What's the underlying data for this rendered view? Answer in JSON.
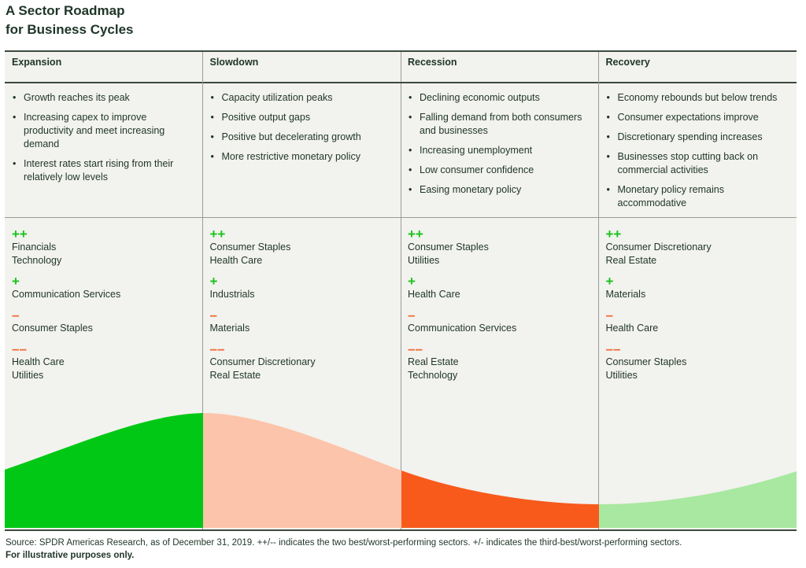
{
  "title_line1": "A Sector Roadmap",
  "title_line2": "for Business Cycles",
  "phases": [
    {
      "name": "Expansion",
      "bullets": [
        "Growth reaches its peak",
        "Increasing capex to improve productivity and meet increasing demand",
        "Interest rates start rising from their relatively low levels"
      ],
      "sectors": [
        {
          "mark": "++",
          "items": [
            "Financials",
            "Technology"
          ]
        },
        {
          "mark": "+",
          "items": [
            "Communication Services"
          ]
        },
        {
          "mark": "–",
          "items": [
            "Consumer Staples"
          ]
        },
        {
          "mark": "––",
          "items": [
            "Health Care",
            "Utilities"
          ]
        }
      ],
      "color": "#00c815"
    },
    {
      "name": "Slowdown",
      "bullets": [
        "Capacity utilization peaks",
        "Positive output gaps",
        "Positive but decelerating growth",
        "More restrictive monetary policy"
      ],
      "sectors": [
        {
          "mark": "++",
          "items": [
            "Consumer Staples",
            "Health Care"
          ]
        },
        {
          "mark": "+",
          "items": [
            "Industrials"
          ]
        },
        {
          "mark": "–",
          "items": [
            "Materials"
          ]
        },
        {
          "mark": "––",
          "items": [
            "Consumer Discretionary",
            "Real Estate"
          ]
        }
      ],
      "color": "#fcc4aa"
    },
    {
      "name": "Recession",
      "bullets": [
        "Declining economic outputs",
        "Falling demand from both consumers and businesses",
        "Increasing unemployment",
        "Low consumer confidence",
        "Easing monetary policy"
      ],
      "sectors": [
        {
          "mark": "++",
          "items": [
            "Consumer Staples",
            "Utilities"
          ]
        },
        {
          "mark": "+",
          "items": [
            "Health Care"
          ]
        },
        {
          "mark": "–",
          "items": [
            "Communication Services"
          ]
        },
        {
          "mark": "––",
          "items": [
            "Real Estate",
            "Technology"
          ]
        }
      ],
      "color": "#f85a1c"
    },
    {
      "name": "Recovery",
      "bullets": [
        "Economy rebounds but below trends",
        "Consumer expectations improve",
        "Discretionary spending increases",
        "Businesses stop cutting back on commercial activities",
        "Monetary policy remains accommodative"
      ],
      "sectors": [
        {
          "mark": "++",
          "items": [
            "Consumer Discretionary",
            "Real Estate"
          ]
        },
        {
          "mark": "+",
          "items": [
            "Materials"
          ]
        },
        {
          "mark": "–",
          "items": [
            "Health Care"
          ]
        },
        {
          "mark": "––",
          "items": [
            "Consumer Staples",
            "Utilities"
          ]
        }
      ],
      "color": "#a8e8a0"
    }
  ],
  "source": "Source: SPDR Americas Research, as of December 31, 2019. ++/-- indicates the two best/worst-performing sectors. +/- indicates the third-best/worst-performing sectors.",
  "disclaimer": "For illustrative purposes only."
}
